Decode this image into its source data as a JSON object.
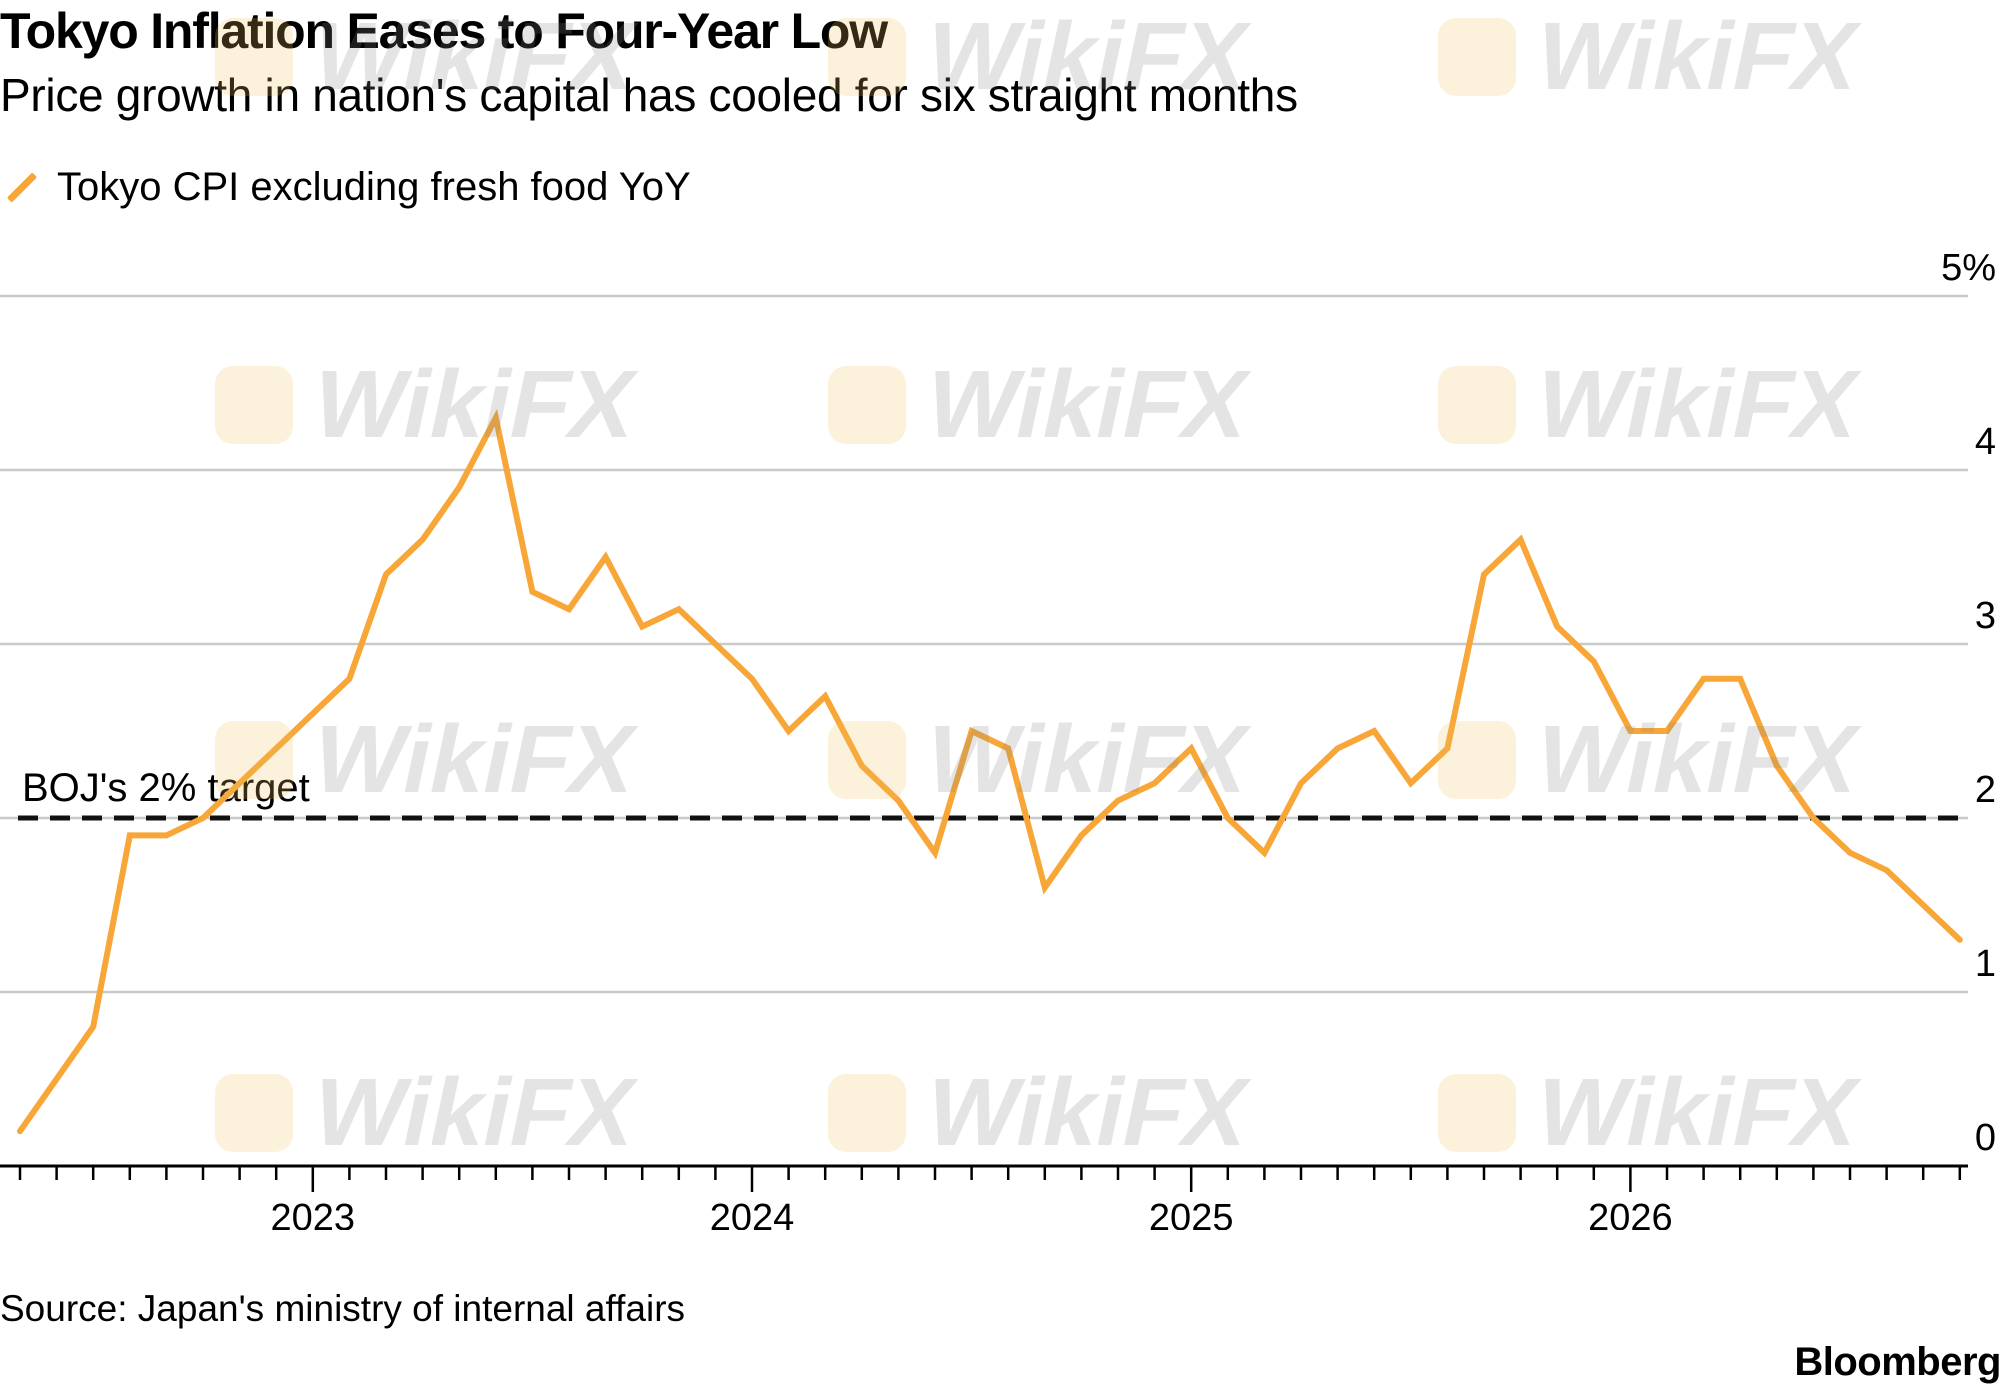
{
  "chart_data": {
    "type": "line",
    "title": "Tokyo Inflation Eases to Four-Year Low",
    "subtitle": "Price growth in nation's capital has cooled for six straight months",
    "legend": "top-left",
    "series": [
      {
        "name": "Tokyo CPI excluding fresh food YoY",
        "color": "#f7a637",
        "values": [
          0.2,
          0.5,
          0.8,
          1.9,
          1.9,
          2.0,
          2.2,
          2.4,
          2.6,
          2.8,
          3.4,
          3.6,
          3.9,
          4.3,
          3.3,
          3.2,
          3.5,
          3.1,
          3.2,
          3.0,
          2.8,
          2.5,
          2.7,
          2.3,
          2.1,
          1.8,
          2.5,
          2.4,
          1.6,
          1.9,
          2.1,
          2.2,
          2.4,
          2.0,
          1.8,
          2.2,
          2.4,
          2.5,
          2.2,
          2.4,
          3.4,
          3.6,
          3.1,
          2.9,
          2.5,
          2.5,
          2.8,
          2.8,
          2.3,
          2.0,
          1.8,
          1.7,
          1.5,
          1.3
        ]
      }
    ],
    "x_start": "2022-05",
    "x_tick_labels": [
      "2023",
      "2024",
      "2025",
      "2026"
    ],
    "y_tick_labels": [
      "0",
      "1",
      "2",
      "3",
      "4",
      "5%"
    ],
    "ylim": [
      0,
      5
    ],
    "reference_line": {
      "value": 2,
      "label": "BOJ's 2% target",
      "style": "dashed"
    },
    "grid": true,
    "source": "Source: Japan's ministry of internal affairs"
  },
  "branding": {
    "name": "Bloomberg",
    "watermark": "WikiFX"
  }
}
